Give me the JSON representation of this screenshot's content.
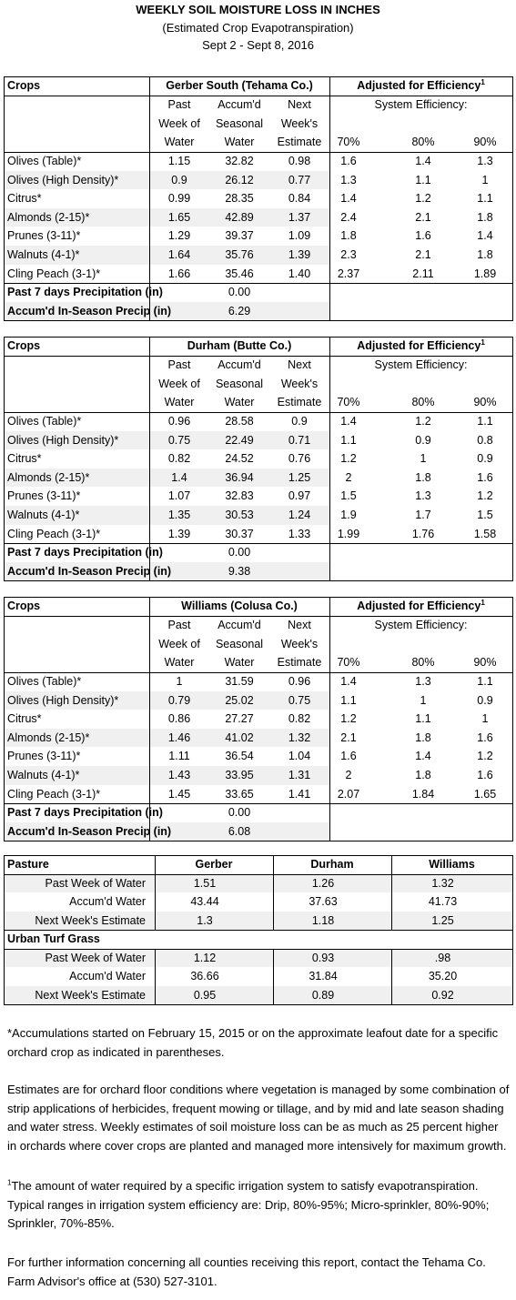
{
  "header": {
    "title": "WEEKLY SOIL MOISTURE LOSS IN INCHES",
    "subtitle": "(Estimated Crop Evapotranspiration)",
    "dates": "Sept 2 - Sept 8, 2016"
  },
  "sections": [
    {
      "crops_label": "Crops",
      "location": "Gerber South (Tehama Co.)",
      "adjusted": "Adjusted for Efficiency",
      "adjusted_note": "1",
      "column_headers": [
        [
          "Past",
          "Week of",
          "Water"
        ],
        [
          "Accum'd",
          "Seasonal",
          "Water"
        ],
        [
          "Next",
          "Week's",
          "Estimate"
        ]
      ],
      "system_efficiency": "System Efficiency:",
      "efficiency_levels": [
        "70%",
        "80%",
        "90%"
      ],
      "rows": [
        [
          "Olives (Table)*",
          "1.15",
          "32.82",
          "0.98",
          "1.6",
          "1.4",
          "1.3"
        ],
        [
          "Olives (High Density)*",
          "0.9",
          "26.12",
          "0.77",
          "1.3",
          "1.1",
          "1"
        ],
        [
          "Citrus*",
          "0.99",
          "28.35",
          "0.84",
          "1.4",
          "1.2",
          "1.1"
        ],
        [
          "Almonds (2-15)*",
          "1.65",
          "42.89",
          "1.37",
          "2.4",
          "2.1",
          "1.8"
        ],
        [
          "Prunes (3-11)*",
          "1.29",
          "39.37",
          "1.09",
          "1.8",
          "1.6",
          "1.4"
        ],
        [
          "Walnuts (4-1)*",
          "1.64",
          "35.76",
          "1.39",
          "2.3",
          "2.1",
          "1.8"
        ],
        [
          "Cling Peach (3-1)*",
          "1.66",
          "35.46",
          "1.40",
          "2.37",
          "2.11",
          "1.89"
        ]
      ],
      "precip": [
        [
          "Past 7 days Precipitation (in)",
          "0.00"
        ],
        [
          "Accum'd In-Season Precip (in)",
          "6.29"
        ]
      ]
    },
    {
      "crops_label": "Crops",
      "location": "Durham (Butte Co.)",
      "adjusted": "Adjusted for Efficiency",
      "adjusted_note": "1",
      "column_headers": [
        [
          "Past",
          "Week of",
          "Water"
        ],
        [
          "Accum'd",
          "Seasonal",
          "Water"
        ],
        [
          "Next",
          "Week's",
          "Estimate"
        ]
      ],
      "system_efficiency": "System Efficiency:",
      "efficiency_levels": [
        "70%",
        "80%",
        "90%"
      ],
      "rows": [
        [
          "Olives (Table)*",
          "0.96",
          "28.58",
          "0.9",
          "1.4",
          "1.2",
          "1.1"
        ],
        [
          "Olives (High Density)*",
          "0.75",
          "22.49",
          "0.71",
          "1.1",
          "0.9",
          "0.8"
        ],
        [
          "Citrus*",
          "0.82",
          "24.52",
          "0.76",
          "1.2",
          "1",
          "0.9"
        ],
        [
          "Almonds (2-15)*",
          "1.4",
          "36.94",
          "1.25",
          "2",
          "1.8",
          "1.6"
        ],
        [
          "Prunes (3-11)*",
          "1.07",
          "32.83",
          "0.97",
          "1.5",
          "1.3",
          "1.2"
        ],
        [
          "Walnuts (4-1)*",
          "1.35",
          "30.53",
          "1.24",
          "1.9",
          "1.7",
          "1.5"
        ],
        [
          "Cling Peach (3-1)*",
          "1.39",
          "30.37",
          "1.33",
          "1.99",
          "1.76",
          "1.58"
        ]
      ],
      "precip": [
        [
          "Past 7 days Precipitation (in)",
          "0.00"
        ],
        [
          "Accum'd In-Season Precip (in)",
          "9.38"
        ]
      ]
    },
    {
      "crops_label": "Crops",
      "location": "Williams (Colusa Co.)",
      "adjusted": "Adjusted for Efficiency",
      "adjusted_note": "1",
      "column_headers": [
        [
          "Past",
          "Week of",
          "Water"
        ],
        [
          "Accum'd",
          "Seasonal",
          "Water"
        ],
        [
          "Next",
          "Week's",
          "Estimate"
        ]
      ],
      "system_efficiency": "System Efficiency:",
      "efficiency_levels": [
        "70%",
        "80%",
        "90%"
      ],
      "rows": [
        [
          "Olives (Table)*",
          "1",
          "31.59",
          "0.96",
          "1.4",
          "1.3",
          "1.1"
        ],
        [
          "Olives (High Density)*",
          "0.79",
          "25.02",
          "0.75",
          "1.1",
          "1",
          "0.9"
        ],
        [
          "Citrus*",
          "0.86",
          "27.27",
          "0.82",
          "1.2",
          "1.1",
          "1"
        ],
        [
          "Almonds (2-15)*",
          "1.46",
          "41.02",
          "1.32",
          "2.1",
          "1.8",
          "1.6"
        ],
        [
          "Prunes (3-11)*",
          "1.11",
          "36.54",
          "1.04",
          "1.6",
          "1.4",
          "1.2"
        ],
        [
          "Walnuts (4-1)*",
          "1.43",
          "33.95",
          "1.31",
          "2",
          "1.8",
          "1.6"
        ],
        [
          "Cling Peach (3-1)*",
          "1.45",
          "33.65",
          "1.41",
          "2.07",
          "1.84",
          "1.65"
        ]
      ],
      "precip": [
        [
          "Past 7 days Precipitation (in)",
          "0.00"
        ],
        [
          "Accum'd In-Season Precip (in)",
          "6.08"
        ]
      ]
    }
  ],
  "pasture_table": {
    "header": [
      "Pasture",
      "Gerber",
      "Durham",
      "Williams"
    ],
    "pasture_rows": [
      [
        "Past Week of Water",
        "1.51",
        "1.26",
        "1.32"
      ],
      [
        "Accum'd Water",
        "43.44",
        "37.63",
        "41.73"
      ],
      [
        "Next Week's Estimate",
        "1.3",
        "1.18",
        "1.25"
      ]
    ],
    "turf_label": "Urban Turf Grass",
    "turf_rows": [
      [
        "Past Week of Water",
        "1.12",
        "0.93",
        ".98"
      ],
      [
        "Accum'd Water",
        "36.66",
        "31.84",
        "35.20"
      ],
      [
        "Next Week's Estimate",
        "0.95",
        "0.89",
        "0.92"
      ]
    ]
  },
  "notes": [
    {
      "text": "*Accumulations started on February 15, 2015 or on the approximate leafout date for a specific orchard crop as indicated in parentheses."
    },
    {
      "text": "Estimates are for orchard floor conditions where vegetation is managed by some combination of strip applications of herbicides, frequent mowing or tillage, and by mid and late season shading and water stress.  Weekly estimates of soil moisture loss can be as much as 25 percent higher in orchards where cover crops are planted and managed more intensively for maximum growth."
    },
    {
      "marker": "1",
      "text": "The amount of water required by a specific irrigation system to satisfy evapotranspiration. Typical ranges in irrigation system efficiency are: Drip, 80%-95%; Micro-sprinkler, 80%-90%; Sprinkler, 70%-85%."
    },
    {
      "text": "For further information concerning all counties receiving this report, contact the Tehama Co. Farm Advisor's office at (530) 527-3101."
    }
  ]
}
